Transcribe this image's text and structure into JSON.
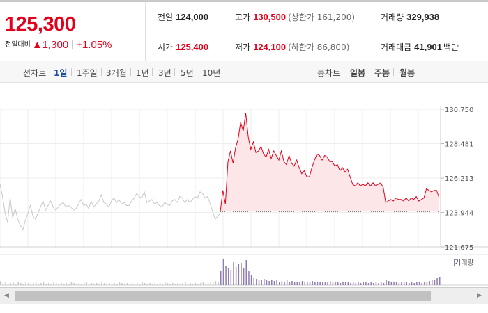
{
  "quote": {
    "current_price": "125,300",
    "change_label": "전일대비",
    "change_value": "▲1,300",
    "change_pct": "+1.05%"
  },
  "stats": {
    "prev_close_label": "전일",
    "prev_close": "124,000",
    "high_label": "고가",
    "high": "130,500",
    "upper_limit": "(상한가 161,200)",
    "volume_label": "거래량",
    "volume": "329,938",
    "open_label": "시가",
    "open": "125,400",
    "low_label": "저가",
    "low": "124,100",
    "lower_limit": "(하한가 86,800)",
    "amount_label": "거래대금",
    "amount": "41,901",
    "amount_unit": "백만"
  },
  "menu": {
    "line_chart_label": "선차트",
    "periods": [
      "1일",
      "1주일",
      "3개월",
      "1년",
      "3년",
      "5년",
      "10년"
    ],
    "candle_chart_label": "봉차트",
    "candle_periods": [
      "일봉",
      "주봉",
      "월봉"
    ]
  },
  "colors": {
    "up": "#e4001b",
    "prev_day": "#c8c8c8",
    "volume": "#8e7bb0",
    "area_fill": "#fde6e8"
  },
  "chart_data": {
    "type": "line",
    "y_ticks": [
      "130,750",
      "128,481",
      "126,213",
      "123,944",
      "121,675"
    ],
    "ylim": [
      121675,
      130750
    ],
    "prev_close_line": 124000,
    "volume_legend": "거래량",
    "previous_day_series": [
      125800,
      125000,
      123900,
      123300,
      124900,
      123600,
      124200,
      123500,
      123100,
      122800,
      123400,
      123900,
      124400,
      123700,
      123500,
      123900,
      124300,
      124700,
      124100,
      124400,
      124700,
      124300,
      124100,
      124300,
      124500,
      124600,
      124300,
      124400,
      124300,
      124100,
      124200,
      124500,
      124800,
      124400,
      124500,
      124200,
      124700,
      124300,
      124500,
      124700,
      125100,
      124600,
      124500,
      124300,
      124700,
      124900,
      124600,
      124800,
      124500,
      124600,
      124400,
      124400,
      124700,
      124900,
      125200,
      125000,
      124900,
      125300,
      124600,
      124700,
      124800,
      124500,
      124600,
      124400,
      124300,
      124600,
      124500,
      124400,
      124700,
      124800,
      124600,
      125000,
      124900,
      124600,
      124800,
      124600,
      124800,
      125000,
      124900,
      125300,
      125200,
      124900,
      125000,
      124500,
      124000,
      123500,
      123700,
      123900
    ],
    "today_series": [
      124000,
      125400,
      124500,
      127300,
      128000,
      127200,
      128200,
      128800,
      129900,
      129300,
      130500,
      128900,
      128100,
      128600,
      127900,
      128000,
      128300,
      127800,
      127600,
      128100,
      127500,
      128000,
      127700,
      127400,
      128000,
      127300,
      127100,
      127700,
      127200,
      127000,
      127400,
      126900,
      126500,
      126700,
      126300,
      126300,
      126900,
      127400,
      127800,
      127700,
      127400,
      127700,
      127600,
      127300,
      127300,
      127000,
      127100,
      126700,
      126900,
      126600,
      126800,
      126300,
      125800,
      125700,
      125900,
      125700,
      125800,
      125700,
      125900,
      125700,
      125900,
      125700,
      125800,
      125900,
      125600,
      124600,
      124700,
      124800,
      124700,
      124900,
      124800,
      124800,
      124700,
      124900,
      124700,
      124900,
      124800,
      125000,
      124700,
      124800,
      124900,
      125500,
      125400,
      125300,
      125400,
      125400,
      124900
    ],
    "volume_prev_day": [
      6,
      3,
      4,
      2,
      3,
      4,
      2,
      5,
      3,
      2,
      4,
      3,
      2,
      3,
      5,
      2,
      3,
      4,
      2,
      3,
      2,
      4,
      3,
      2,
      3,
      2,
      3,
      2,
      4,
      3,
      2,
      3,
      2,
      3,
      4,
      2,
      3,
      2,
      3,
      2,
      4,
      3,
      2,
      3,
      2,
      3,
      2,
      4,
      3,
      2,
      3,
      2,
      3,
      2,
      3,
      2,
      4,
      3,
      2,
      3,
      2,
      3,
      2,
      3,
      2,
      4,
      3,
      2,
      3,
      2,
      3,
      2,
      3,
      4,
      2,
      3,
      2,
      3,
      2,
      3,
      4,
      2,
      3,
      5,
      4,
      6,
      5,
      7
    ],
    "volume_today": [
      20,
      38,
      28,
      25,
      22,
      34,
      26,
      30,
      32,
      24,
      36,
      20,
      14,
      10,
      9,
      8,
      7,
      9,
      8,
      6,
      7,
      6,
      8,
      5,
      6,
      5,
      7,
      5,
      6,
      4,
      5,
      5,
      6,
      4,
      5,
      4,
      6,
      5,
      4,
      5,
      4,
      5,
      4,
      6,
      4,
      5,
      4,
      3,
      4,
      5,
      4,
      3,
      4,
      3,
      4,
      3,
      4,
      5,
      3,
      4,
      3,
      4,
      3,
      4,
      3,
      8,
      6,
      5,
      4,
      5,
      3,
      4,
      5,
      4,
      3,
      4,
      3,
      5,
      4,
      3,
      4,
      5,
      6,
      7,
      8,
      10,
      12
    ]
  }
}
